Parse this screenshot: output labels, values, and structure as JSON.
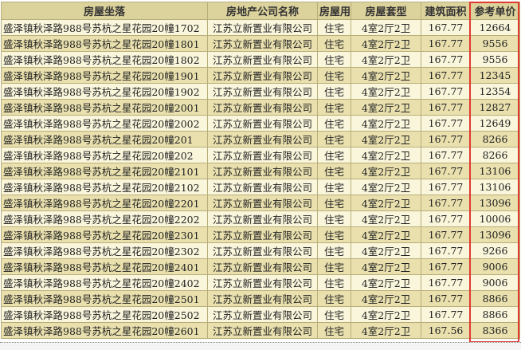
{
  "columns": [
    "房屋坐落",
    "房地产公司名称",
    "房屋用途",
    "房屋套型",
    "建筑面积",
    "参考单价"
  ],
  "highlight_color": "#e03a2f",
  "rows": [
    [
      "盛泽镇秋泽路988号苏杭之星花园20幢1702",
      "江苏立新置业有限公司",
      "住宅",
      "4室2厅2卫",
      "167.77",
      "12664"
    ],
    [
      "盛泽镇秋泽路988号苏杭之星花园20幢1801",
      "江苏立新置业有限公司",
      "住宅",
      "4室2厅2卫",
      "167.77",
      "9556"
    ],
    [
      "盛泽镇秋泽路988号苏杭之星花园20幢1802",
      "江苏立新置业有限公司",
      "住宅",
      "4室2厅2卫",
      "167.77",
      "9556"
    ],
    [
      "盛泽镇秋泽路988号苏杭之星花园20幢1901",
      "江苏立新置业有限公司",
      "住宅",
      "4室2厅2卫",
      "167.77",
      "12345"
    ],
    [
      "盛泽镇秋泽路988号苏杭之星花园20幢1902",
      "江苏立新置业有限公司",
      "住宅",
      "4室2厅2卫",
      "167.77",
      "12354"
    ],
    [
      "盛泽镇秋泽路988号苏杭之星花园20幢2001",
      "江苏立新置业有限公司",
      "住宅",
      "4室2厅2卫",
      "167.77",
      "12827"
    ],
    [
      "盛泽镇秋泽路988号苏杭之星花园20幢2002",
      "江苏立新置业有限公司",
      "住宅",
      "4室2厅2卫",
      "167.77",
      "12649"
    ],
    [
      "盛泽镇秋泽路988号苏杭之星花园20幢201",
      "江苏立新置业有限公司",
      "住宅",
      "4室2厅2卫",
      "167.77",
      "8266"
    ],
    [
      "盛泽镇秋泽路988号苏杭之星花园20幢202",
      "江苏立新置业有限公司",
      "住宅",
      "4室2厅2卫",
      "167.77",
      "8266"
    ],
    [
      "盛泽镇秋泽路988号苏杭之星花园20幢2101",
      "江苏立新置业有限公司",
      "住宅",
      "4室2厅2卫",
      "167.77",
      "13106"
    ],
    [
      "盛泽镇秋泽路988号苏杭之星花园20幢2102",
      "江苏立新置业有限公司",
      "住宅",
      "4室2厅2卫",
      "167.77",
      "13106"
    ],
    [
      "盛泽镇秋泽路988号苏杭之星花园20幢2201",
      "江苏立新置业有限公司",
      "住宅",
      "4室2厅2卫",
      "167.77",
      "13096"
    ],
    [
      "盛泽镇秋泽路988号苏杭之星花园20幢2202",
      "江苏立新置业有限公司",
      "住宅",
      "4室2厅2卫",
      "167.77",
      "10006"
    ],
    [
      "盛泽镇秋泽路988号苏杭之星花园20幢2301",
      "江苏立新置业有限公司",
      "住宅",
      "4室2厅2卫",
      "167.77",
      "13096"
    ],
    [
      "盛泽镇秋泽路988号苏杭之星花园20幢2302",
      "江苏立新置业有限公司",
      "住宅",
      "4室2厅2卫",
      "167.77",
      "9266"
    ],
    [
      "盛泽镇秋泽路988号苏杭之星花园20幢2401",
      "江苏立新置业有限公司",
      "住宅",
      "4室2厅2卫",
      "167.77",
      "9006"
    ],
    [
      "盛泽镇秋泽路988号苏杭之星花园20幢2402",
      "江苏立新置业有限公司",
      "住宅",
      "4室2厅2卫",
      "167.77",
      "9006"
    ],
    [
      "盛泽镇秋泽路988号苏杭之星花园20幢2501",
      "江苏立新置业有限公司",
      "住宅",
      "4室2厅2卫",
      "167.77",
      "8866"
    ],
    [
      "盛泽镇秋泽路988号苏杭之星花园20幢2502",
      "江苏立新置业有限公司",
      "住宅",
      "4室2厅2卫",
      "167.77",
      "8866"
    ],
    [
      "盛泽镇秋泽路988号苏杭之星花园20幢2601",
      "江苏立新置业有限公司",
      "住宅",
      "4室2厅2卫",
      "167.56",
      "8366"
    ]
  ]
}
